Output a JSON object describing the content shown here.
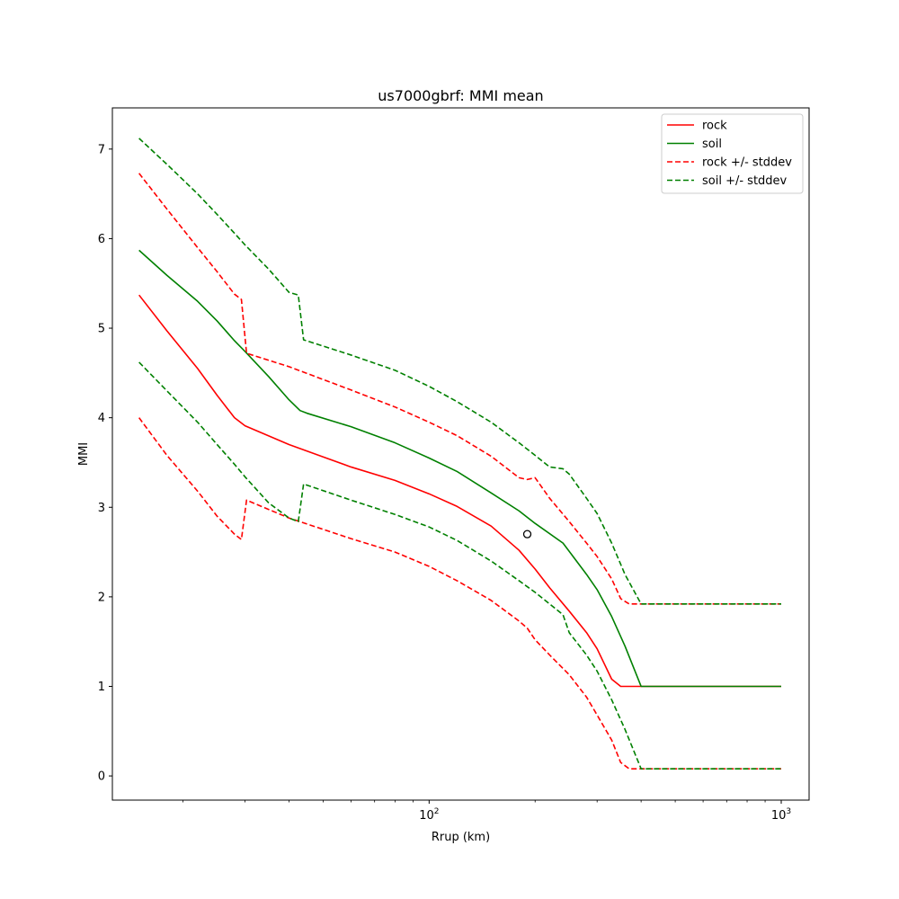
{
  "chart_data": {
    "type": "line",
    "title": "us7000gbrf: MMI mean",
    "xlabel": "Rrup (km)",
    "ylabel": "MMI",
    "xscale": "log",
    "xlim": [
      12.6,
      1200
    ],
    "ylim": [
      -0.27,
      7.46
    ],
    "grid": false,
    "legend_position": "top-right",
    "x_major_ticks": [
      {
        "value": 100,
        "base": "10",
        "exp": "2"
      },
      {
        "value": 1000,
        "base": "10",
        "exp": "3"
      }
    ],
    "y_ticks": [
      0,
      1,
      2,
      3,
      4,
      5,
      6,
      7
    ],
    "series": [
      {
        "name": "rock",
        "color": "#ff0000",
        "style": "solid",
        "x": [
          15,
          18,
          22,
          25,
          28,
          30,
          40,
          60,
          80,
          100,
          120,
          150,
          180,
          200,
          220,
          250,
          280,
          300,
          330,
          350,
          1000
        ],
        "y": [
          5.37,
          4.97,
          4.55,
          4.25,
          4.0,
          3.91,
          3.7,
          3.45,
          3.3,
          3.15,
          3.01,
          2.79,
          2.52,
          2.31,
          2.1,
          1.84,
          1.6,
          1.42,
          1.08,
          1.0,
          1.0
        ]
      },
      {
        "name": "soil",
        "color": "#008000",
        "style": "solid",
        "x": [
          15,
          18,
          22,
          25,
          28,
          30,
          35,
          40,
          43,
          45,
          60,
          80,
          100,
          120,
          150,
          180,
          200,
          240,
          280,
          300,
          330,
          360,
          400,
          1000
        ],
        "y": [
          5.87,
          5.59,
          5.3,
          5.08,
          4.86,
          4.74,
          4.46,
          4.2,
          4.08,
          4.05,
          3.9,
          3.72,
          3.55,
          3.4,
          3.16,
          2.96,
          2.82,
          2.6,
          2.25,
          2.08,
          1.78,
          1.45,
          1.0,
          1.0
        ]
      },
      {
        "name": "rock +/- stddev",
        "color": "#ff0000",
        "style": "dashed",
        "x": [
          15,
          18,
          22,
          25,
          28,
          29.3,
          30.3,
          40,
          60,
          80,
          100,
          120,
          150,
          180,
          190,
          200,
          220,
          250,
          280,
          300,
          330,
          350,
          370,
          1000
        ],
        "y": [
          6.73,
          6.33,
          5.9,
          5.63,
          5.38,
          5.32,
          4.72,
          4.57,
          4.31,
          4.12,
          3.95,
          3.8,
          3.57,
          3.33,
          3.31,
          3.33,
          3.1,
          2.84,
          2.6,
          2.45,
          2.2,
          1.98,
          1.92,
          1.92
        ]
      },
      {
        "name": "rock +/- stddev",
        "color": "#ff0000",
        "style": "dashed",
        "x": [
          15,
          18,
          22,
          25,
          28,
          29.3,
          30.3,
          40,
          60,
          80,
          100,
          120,
          150,
          180,
          190,
          200,
          220,
          250,
          280,
          300,
          330,
          350,
          370,
          1000
        ],
        "y": [
          4.0,
          3.58,
          3.18,
          2.9,
          2.7,
          2.64,
          3.08,
          2.88,
          2.65,
          2.5,
          2.34,
          2.18,
          1.96,
          1.73,
          1.65,
          1.52,
          1.35,
          1.13,
          0.88,
          0.68,
          0.4,
          0.15,
          0.08,
          0.08
        ]
      },
      {
        "name": "soil +/- stddev",
        "color": "#008000",
        "style": "dashed",
        "x": [
          15,
          18,
          22,
          25,
          28,
          30,
          35,
          40,
          42.5,
          44,
          60,
          80,
          100,
          120,
          150,
          180,
          200,
          220,
          240,
          250,
          280,
          300,
          330,
          360,
          400,
          1000
        ],
        "y": [
          7.12,
          6.83,
          6.5,
          6.27,
          6.06,
          5.93,
          5.66,
          5.4,
          5.37,
          4.87,
          4.7,
          4.53,
          4.35,
          4.18,
          3.95,
          3.72,
          3.58,
          3.45,
          3.43,
          3.37,
          3.1,
          2.93,
          2.6,
          2.25,
          1.92,
          1.92
        ]
      },
      {
        "name": "soil +/- stddev",
        "color": "#008000",
        "style": "dashed",
        "x": [
          15,
          18,
          22,
          25,
          28,
          30,
          35,
          40,
          42.5,
          44,
          60,
          80,
          100,
          120,
          150,
          180,
          200,
          220,
          240,
          250,
          280,
          300,
          330,
          360,
          400,
          1000
        ],
        "y": [
          4.62,
          4.3,
          3.95,
          3.7,
          3.48,
          3.34,
          3.05,
          2.88,
          2.84,
          3.26,
          3.08,
          2.92,
          2.78,
          2.63,
          2.4,
          2.18,
          2.05,
          1.92,
          1.8,
          1.6,
          1.35,
          1.17,
          0.85,
          0.52,
          0.08,
          0.08
        ]
      }
    ],
    "points": [
      {
        "x": 190,
        "y": 2.7,
        "marker": "open-circle",
        "color": "#000000"
      }
    ],
    "legend": [
      {
        "label": "rock",
        "color": "#ff0000",
        "style": "solid"
      },
      {
        "label": "soil",
        "color": "#008000",
        "style": "solid"
      },
      {
        "label": "rock +/- stddev",
        "color": "#ff0000",
        "style": "dashed"
      },
      {
        "label": "soil +/- stddev",
        "color": "#008000",
        "style": "dashed"
      }
    ]
  }
}
